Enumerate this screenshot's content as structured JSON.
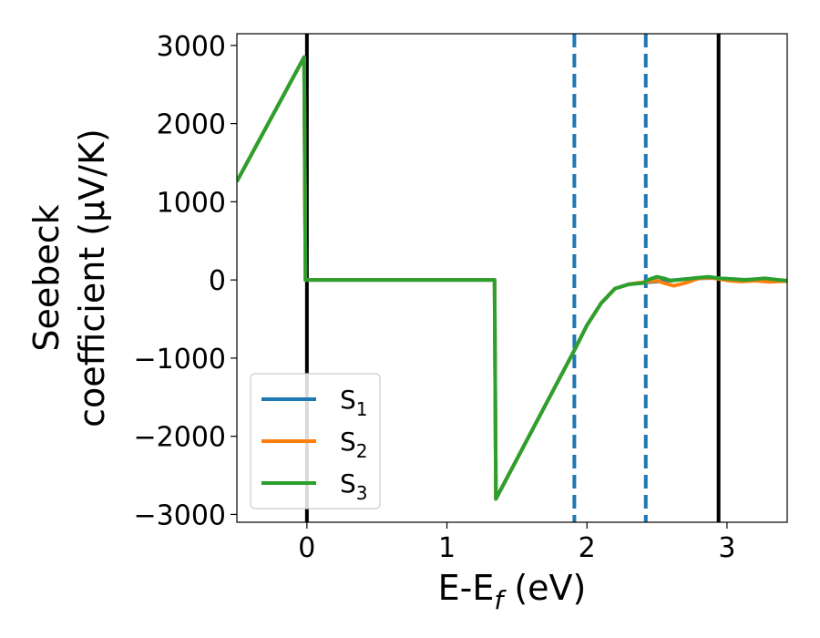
{
  "chart_data": {
    "type": "line",
    "xlabel": "E-E",
    "xlabel_sub": "f",
    "xlabel_unit": " (eV)",
    "ylabel_line1": "Seebeck",
    "ylabel_line2": "coefficient  (μV/K)",
    "xlim": [
      -0.5,
      3.43
    ],
    "ylim": [
      -3100,
      3150
    ],
    "xticks": [
      0,
      1,
      2,
      3
    ],
    "xtick_labels": [
      "0",
      "1",
      "2",
      "3"
    ],
    "yticks": [
      -3000,
      -2000,
      -1000,
      0,
      1000,
      2000,
      3000
    ],
    "ytick_labels": [
      "−3000",
      "−2000",
      "−1000",
      "0",
      "1000",
      "2000",
      "3000"
    ],
    "grid": false,
    "legend_position": "lower-left",
    "vlines": [
      {
        "x": 0.0,
        "style": "solid",
        "color": "#000000"
      },
      {
        "x": 2.94,
        "style": "solid",
        "color": "#000000"
      },
      {
        "x": 1.91,
        "style": "dashed",
        "color": "#1f77b4"
      },
      {
        "x": 2.42,
        "style": "dashed",
        "color": "#1f77b4"
      }
    ],
    "series": [
      {
        "name": "S",
        "sub": "1",
        "color": "#1f77b4",
        "points": [
          [
            -0.5,
            1260
          ],
          [
            -0.02,
            2850
          ],
          [
            -0.01,
            0
          ],
          [
            1.34,
            0
          ],
          [
            1.35,
            -2800
          ],
          [
            1.91,
            -900
          ],
          [
            2.0,
            -580
          ],
          [
            2.1,
            -300
          ],
          [
            2.2,
            -110
          ],
          [
            2.3,
            -55
          ],
          [
            2.4,
            -35
          ],
          [
            2.5,
            -20
          ],
          [
            2.6,
            -5
          ],
          [
            2.7,
            10
          ],
          [
            2.8,
            20
          ],
          [
            2.9,
            25
          ],
          [
            3.0,
            15
          ],
          [
            3.1,
            5
          ],
          [
            3.2,
            0
          ],
          [
            3.3,
            0
          ],
          [
            3.43,
            -10
          ]
        ]
      },
      {
        "name": "S",
        "sub": "2",
        "color": "#ff7f0e",
        "points": [
          [
            -0.5,
            1260
          ],
          [
            -0.02,
            2850
          ],
          [
            -0.01,
            0
          ],
          [
            1.34,
            0
          ],
          [
            1.35,
            -2800
          ],
          [
            1.91,
            -900
          ],
          [
            2.0,
            -580
          ],
          [
            2.1,
            -300
          ],
          [
            2.2,
            -110
          ],
          [
            2.3,
            -55
          ],
          [
            2.4,
            -30
          ],
          [
            2.5,
            -10
          ],
          [
            2.55,
            -40
          ],
          [
            2.62,
            -75
          ],
          [
            2.7,
            -40
          ],
          [
            2.8,
            20
          ],
          [
            2.88,
            30
          ],
          [
            2.95,
            10
          ],
          [
            3.02,
            -10
          ],
          [
            3.1,
            -20
          ],
          [
            3.2,
            -10
          ],
          [
            3.3,
            -25
          ],
          [
            3.43,
            -15
          ]
        ]
      },
      {
        "name": "S",
        "sub": "3",
        "color": "#2ca02c",
        "points": [
          [
            -0.5,
            1260
          ],
          [
            -0.02,
            2850
          ],
          [
            -0.01,
            0
          ],
          [
            1.34,
            0
          ],
          [
            1.35,
            -2800
          ],
          [
            1.91,
            -900
          ],
          [
            2.0,
            -580
          ],
          [
            2.1,
            -300
          ],
          [
            2.2,
            -110
          ],
          [
            2.3,
            -55
          ],
          [
            2.4,
            -40
          ],
          [
            2.45,
            10
          ],
          [
            2.5,
            40
          ],
          [
            2.55,
            20
          ],
          [
            2.6,
            -10
          ],
          [
            2.7,
            10
          ],
          [
            2.8,
            30
          ],
          [
            2.87,
            40
          ],
          [
            2.95,
            20
          ],
          [
            3.05,
            10
          ],
          [
            3.12,
            0
          ],
          [
            3.2,
            10
          ],
          [
            3.27,
            20
          ],
          [
            3.35,
            5
          ],
          [
            3.43,
            -10
          ]
        ]
      }
    ]
  }
}
